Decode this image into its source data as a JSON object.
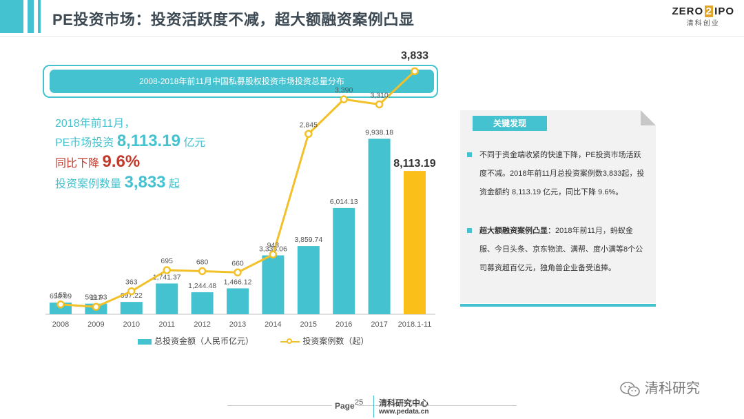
{
  "header": {
    "title": "PE投资市场：投资活跃度不减，超大额融资案例凸显",
    "logo_left": "ZERO",
    "logo_mid": "2",
    "logo_right": "IPO",
    "logo_sub": "清科创业"
  },
  "summary": {
    "line1": "2018年前11月，",
    "pe_label": "PE市场投资",
    "pe_value": "8,113.19",
    "pe_unit": "亿元",
    "yoy_label": "同比下降",
    "yoy_value": "9.6%",
    "cases_label": "投资案例数量",
    "cases_value": "3,833",
    "cases_unit": "起"
  },
  "finding": {
    "tag": "关键发现",
    "p1": "不同于资金端收紧的快速下降，PE投资市场活跃度不减。2018年前11月总投资案例数3,833起，投资金额约 8,113.19 亿元，同比下降 9.6%。",
    "p2_bold": "超大额融资案例凸显",
    "p2": "：2018年前11月，蚂蚁金服、今日头条、京东物流、满帮、度小满等8个公司募资超百亿元，独角兽企业备受追捧。"
  },
  "footer": {
    "page_label": "Page",
    "page_number": "25",
    "org": "清科研究中心",
    "url": "www.pedata.cn",
    "watermark": "清科研究"
  },
  "colors": {
    "teal": "#45c2cf",
    "gold": "#f2c028",
    "orange_bar": "#fbbf1a",
    "red": "#c0392b"
  },
  "chart_data": {
    "type": "bar+line",
    "title": "2008-2018年前11月中国私募股权投资市场投资总量分布",
    "categories": [
      "2008",
      "2009",
      "2010",
      "2011",
      "2012",
      "2013",
      "2014",
      "2015",
      "2016",
      "2017",
      "2018.1-11"
    ],
    "series": [
      {
        "name": "总投资金额（人民币亿元）",
        "type": "bar",
        "values": [
          658.09,
          599.93,
          697.22,
          1741.37,
          1244.48,
          1466.12,
          3336.06,
          3859.74,
          6014.13,
          9938.18,
          8113.19
        ],
        "labels": [
          "658.09",
          "599.93",
          "697.22",
          "1,741.37",
          "1,244.48",
          "1,466.12",
          "3,336.06",
          "3,859.74",
          "6,014.13",
          "9,938.18",
          "8,113.19"
        ]
      },
      {
        "name": "投资案例数（起）",
        "type": "line",
        "values": [
          155,
          117,
          363,
          695,
          680,
          660,
          943,
          2845,
          3390,
          3310,
          3833
        ],
        "labels": [
          "155",
          "117",
          "363",
          "695",
          "680",
          "660",
          "943",
          "2,845",
          "3,390",
          "3,310",
          "3,833"
        ]
      }
    ],
    "bar_ylim": [
      0,
      16000
    ],
    "line_ylim": [
      0,
      5000
    ]
  }
}
